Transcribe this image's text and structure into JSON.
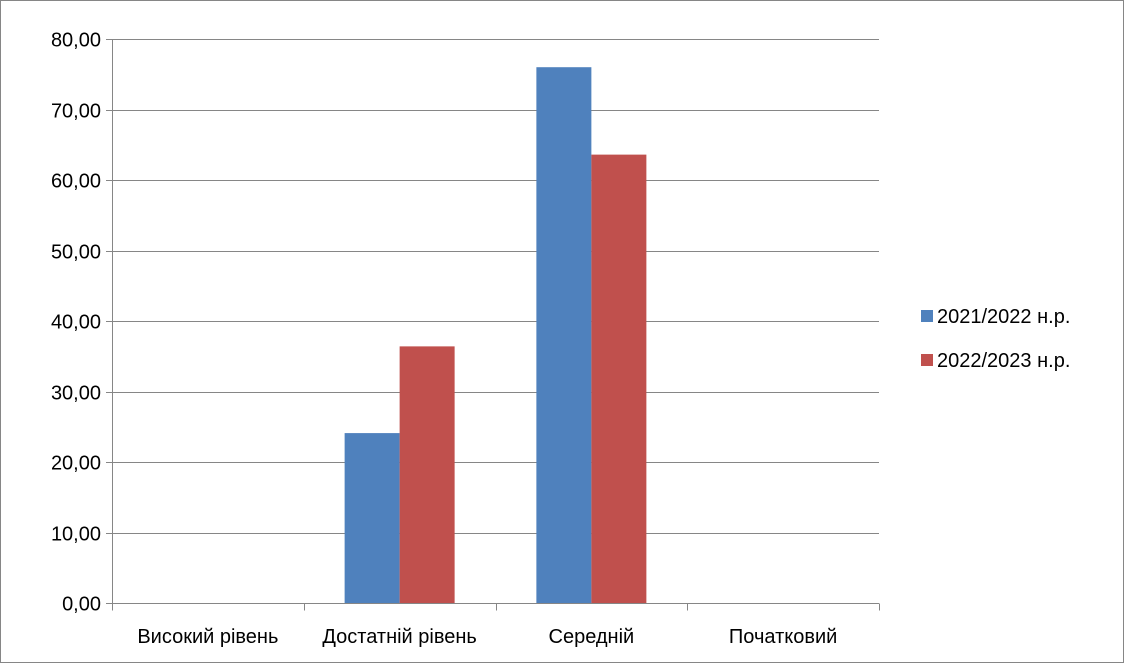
{
  "chart_data": {
    "type": "bar",
    "title": "",
    "xlabel": "",
    "ylabel": "",
    "categories": [
      "Високий рівень",
      "Достатній рівень",
      "Середній",
      "Початковий"
    ],
    "series": [
      {
        "name": "2021/2022 н.р.",
        "values": [
          0,
          24.1,
          76.0,
          0
        ],
        "color": "#4F81BD"
      },
      {
        "name": "2022/2023 н.р.",
        "values": [
          0,
          36.4,
          63.6,
          0
        ],
        "color": "#C0504D"
      }
    ],
    "ylim": [
      0,
      80
    ],
    "ytick_step": 10,
    "ytick_labels": [
      "0,00",
      "10,00",
      "20,00",
      "30,00",
      "40,00",
      "50,00",
      "60,00",
      "70,00",
      "80,00"
    ],
    "grid": true,
    "legend_position": "right",
    "gridline_color": "#868686",
    "frame_color": "#868686"
  }
}
